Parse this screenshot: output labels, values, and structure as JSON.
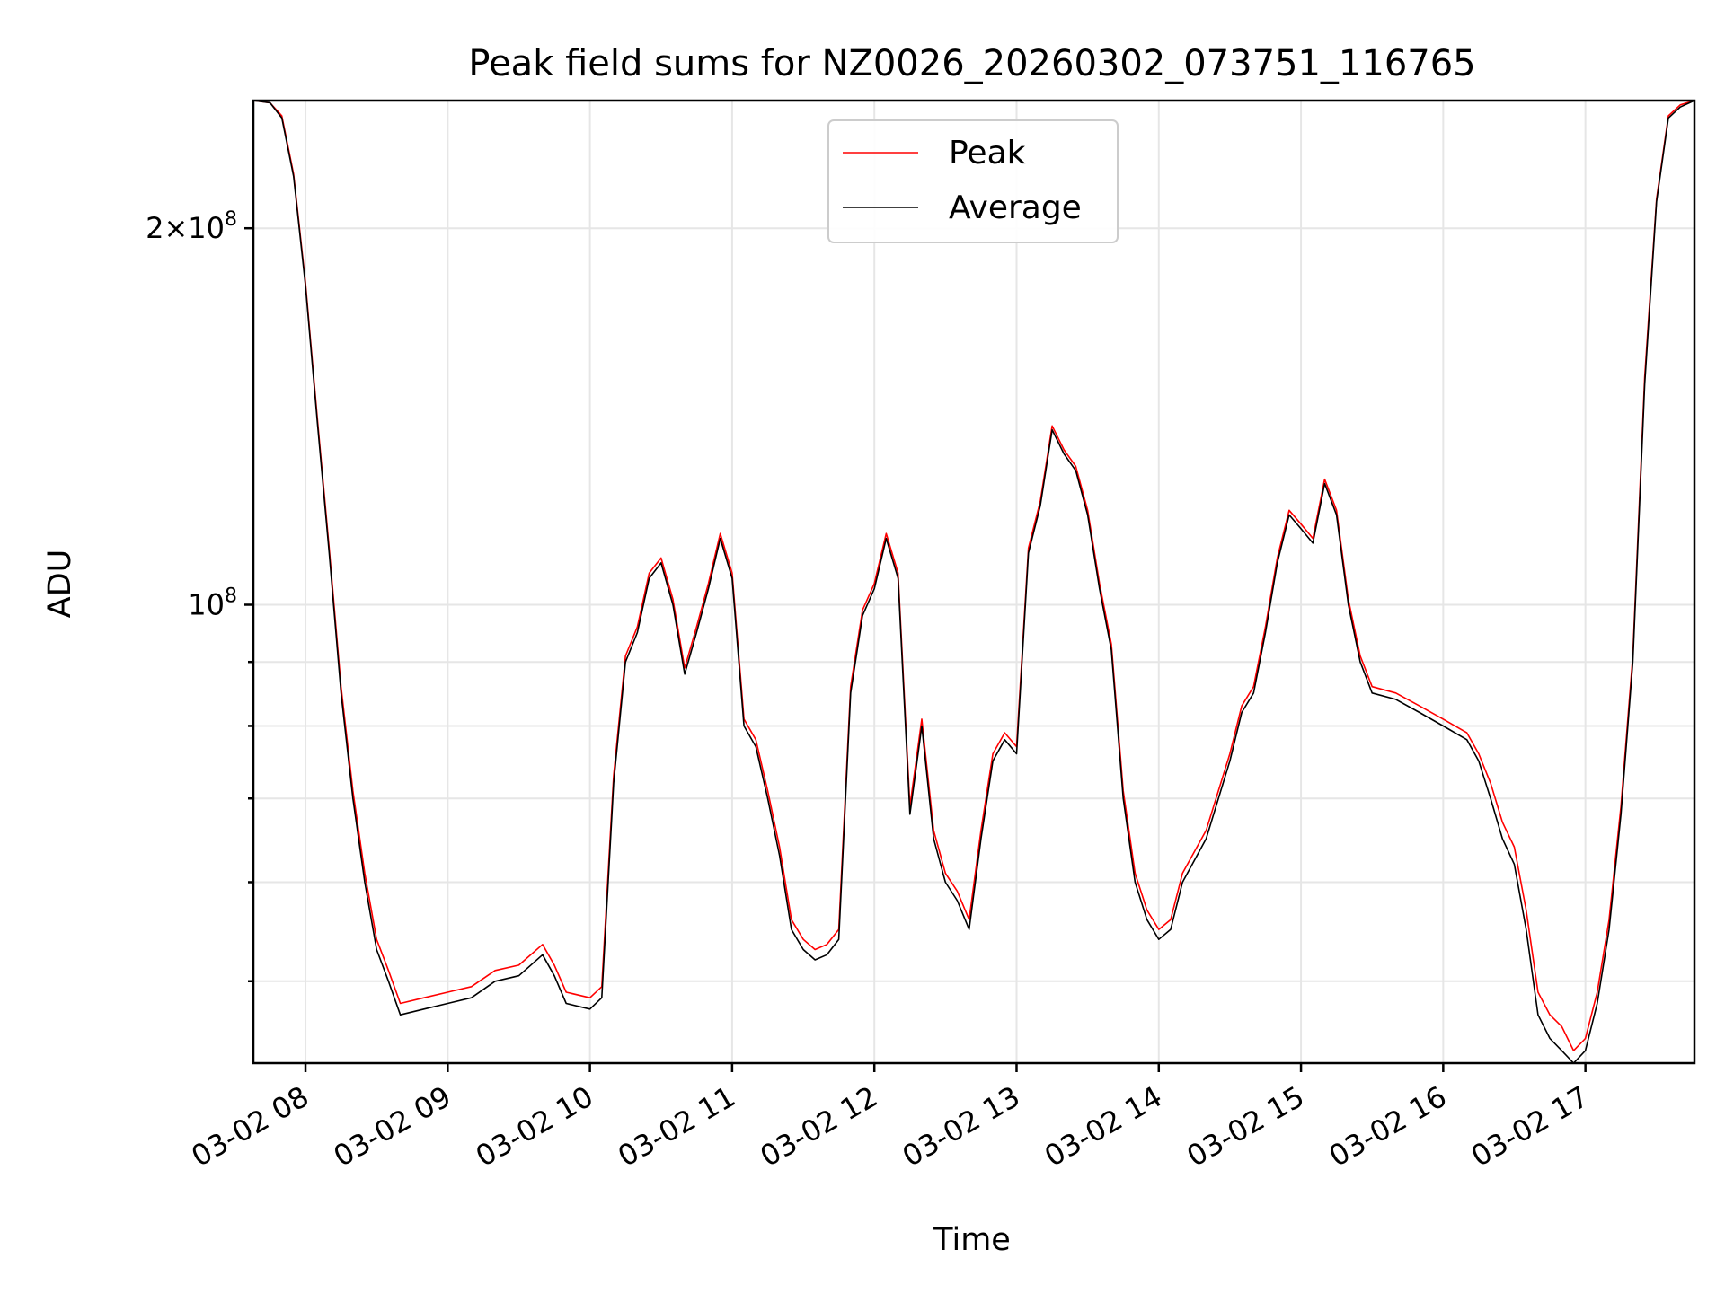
{
  "chart_data": {
    "type": "line",
    "title": "Peak field sums for NZ0026_20260302_073751_116765",
    "xlabel": "Time",
    "ylabel": "ADU",
    "yscale": "log",
    "xlim": [
      "2026-03-02 07:38",
      "2026-03-02 17:46"
    ],
    "ylim": [
      43000000,
      253000000
    ],
    "x_ticks": [
      "03-02 08",
      "03-02 09",
      "03-02 10",
      "03-02 11",
      "03-02 12",
      "03-02 13",
      "03-02 14",
      "03-02 15",
      "03-02 16",
      "03-02 17"
    ],
    "y_ticks_labeled": [
      {
        "value": 100000000,
        "label": "10^8"
      },
      {
        "value": 200000000,
        "label": "2×10^8"
      }
    ],
    "y_minor_ticks": [
      50000000,
      60000000,
      70000000,
      80000000,
      90000000
    ],
    "grid": true,
    "legend_position": "top-center",
    "series": [
      {
        "name": "Average",
        "color": "#000000",
        "x": [
          "2026-03-02 07:38",
          "2026-03-02 07:45",
          "2026-03-02 07:50",
          "2026-03-02 07:55",
          "2026-03-02 08:00",
          "2026-03-02 08:05",
          "2026-03-02 08:10",
          "2026-03-02 08:15",
          "2026-03-02 08:20",
          "2026-03-02 08:25",
          "2026-03-02 08:30",
          "2026-03-02 08:35",
          "2026-03-02 08:40",
          "2026-03-02 08:50",
          "2026-03-02 09:00",
          "2026-03-02 09:10",
          "2026-03-02 09:20",
          "2026-03-02 09:30",
          "2026-03-02 09:40",
          "2026-03-02 09:45",
          "2026-03-02 09:50",
          "2026-03-02 10:00",
          "2026-03-02 10:05",
          "2026-03-02 10:10",
          "2026-03-02 10:15",
          "2026-03-02 10:20",
          "2026-03-02 10:25",
          "2026-03-02 10:30",
          "2026-03-02 10:35",
          "2026-03-02 10:40",
          "2026-03-02 10:45",
          "2026-03-02 10:50",
          "2026-03-02 10:55",
          "2026-03-02 11:00",
          "2026-03-02 11:05",
          "2026-03-02 11:10",
          "2026-03-02 11:15",
          "2026-03-02 11:20",
          "2026-03-02 11:25",
          "2026-03-02 11:30",
          "2026-03-02 11:35",
          "2026-03-02 11:40",
          "2026-03-02 11:45",
          "2026-03-02 11:50",
          "2026-03-02 11:55",
          "2026-03-02 12:00",
          "2026-03-02 12:05",
          "2026-03-02 12:10",
          "2026-03-02 12:15",
          "2026-03-02 12:20",
          "2026-03-02 12:25",
          "2026-03-02 12:30",
          "2026-03-02 12:35",
          "2026-03-02 12:40",
          "2026-03-02 12:45",
          "2026-03-02 12:50",
          "2026-03-02 12:55",
          "2026-03-02 13:00",
          "2026-03-02 13:05",
          "2026-03-02 13:10",
          "2026-03-02 13:15",
          "2026-03-02 13:20",
          "2026-03-02 13:25",
          "2026-03-02 13:30",
          "2026-03-02 13:35",
          "2026-03-02 13:40",
          "2026-03-02 13:45",
          "2026-03-02 13:50",
          "2026-03-02 13:55",
          "2026-03-02 14:00",
          "2026-03-02 14:05",
          "2026-03-02 14:10",
          "2026-03-02 14:20",
          "2026-03-02 14:30",
          "2026-03-02 14:35",
          "2026-03-02 14:40",
          "2026-03-02 14:45",
          "2026-03-02 14:50",
          "2026-03-02 14:55",
          "2026-03-02 15:00",
          "2026-03-02 15:05",
          "2026-03-02 15:10",
          "2026-03-02 15:15",
          "2026-03-02 15:20",
          "2026-03-02 15:25",
          "2026-03-02 15:30",
          "2026-03-02 15:40",
          "2026-03-02 15:50",
          "2026-03-02 16:00",
          "2026-03-02 16:10",
          "2026-03-02 16:15",
          "2026-03-02 16:20",
          "2026-03-02 16:25",
          "2026-03-02 16:30",
          "2026-03-02 16:35",
          "2026-03-02 16:40",
          "2026-03-02 16:45",
          "2026-03-02 16:50",
          "2026-03-02 16:55",
          "2026-03-02 17:00",
          "2026-03-02 17:05",
          "2026-03-02 17:10",
          "2026-03-02 17:15",
          "2026-03-02 17:20",
          "2026-03-02 17:25",
          "2026-03-02 17:30",
          "2026-03-02 17:35",
          "2026-03-02 17:40",
          "2026-03-02 17:46"
        ],
        "values": [
          253000000,
          252000000,
          245000000,
          220000000,
          180000000,
          140000000,
          110000000,
          85000000,
          70000000,
          60000000,
          53000000,
          50000000,
          47000000,
          47500000,
          48000000,
          48500000,
          50000000,
          50500000,
          52500000,
          50500000,
          48000000,
          47500000,
          48500000,
          72000000,
          90000000,
          95000000,
          105000000,
          108000000,
          100000000,
          88000000,
          95000000,
          103000000,
          113000000,
          105000000,
          80000000,
          77000000,
          70000000,
          63000000,
          55000000,
          53000000,
          52000000,
          52500000,
          54000000,
          85000000,
          98000000,
          103000000,
          113000000,
          105000000,
          68000000,
          80000000,
          65000000,
          60000000,
          58000000,
          55000000,
          65000000,
          75000000,
          78000000,
          76000000,
          110000000,
          120000000,
          138000000,
          132000000,
          128000000,
          118000000,
          103000000,
          92000000,
          70000000,
          60000000,
          56000000,
          54000000,
          55000000,
          60000000,
          65000000,
          75000000,
          82000000,
          85000000,
          95000000,
          108000000,
          118000000,
          115000000,
          112000000,
          125000000,
          118000000,
          100000000,
          90000000,
          85000000,
          84000000,
          82000000,
          80000000,
          78000000,
          75000000,
          70000000,
          65000000,
          62000000,
          55000000,
          47000000,
          45000000,
          44000000,
          43000000,
          44000000,
          48000000,
          55000000,
          68000000,
          90000000,
          150000000,
          210000000,
          245000000,
          250000000,
          253000000
        ]
      },
      {
        "name": "Peak",
        "color": "#ff0000",
        "x": [
          "2026-03-02 07:38",
          "2026-03-02 07:45",
          "2026-03-02 07:50",
          "2026-03-02 07:55",
          "2026-03-02 08:00",
          "2026-03-02 08:05",
          "2026-03-02 08:10",
          "2026-03-02 08:15",
          "2026-03-02 08:20",
          "2026-03-02 08:25",
          "2026-03-02 08:30",
          "2026-03-02 08:35",
          "2026-03-02 08:40",
          "2026-03-02 08:50",
          "2026-03-02 09:00",
          "2026-03-02 09:10",
          "2026-03-02 09:20",
          "2026-03-02 09:30",
          "2026-03-02 09:40",
          "2026-03-02 09:45",
          "2026-03-02 09:50",
          "2026-03-02 10:00",
          "2026-03-02 10:05",
          "2026-03-02 10:10",
          "2026-03-02 10:15",
          "2026-03-02 10:20",
          "2026-03-02 10:25",
          "2026-03-02 10:30",
          "2026-03-02 10:35",
          "2026-03-02 10:40",
          "2026-03-02 10:45",
          "2026-03-02 10:50",
          "2026-03-02 10:55",
          "2026-03-02 11:00",
          "2026-03-02 11:05",
          "2026-03-02 11:10",
          "2026-03-02 11:15",
          "2026-03-02 11:20",
          "2026-03-02 11:25",
          "2026-03-02 11:30",
          "2026-03-02 11:35",
          "2026-03-02 11:40",
          "2026-03-02 11:45",
          "2026-03-02 11:50",
          "2026-03-02 11:55",
          "2026-03-02 12:00",
          "2026-03-02 12:05",
          "2026-03-02 12:10",
          "2026-03-02 12:15",
          "2026-03-02 12:20",
          "2026-03-02 12:25",
          "2026-03-02 12:30",
          "2026-03-02 12:35",
          "2026-03-02 12:40",
          "2026-03-02 12:45",
          "2026-03-02 12:50",
          "2026-03-02 12:55",
          "2026-03-02 13:00",
          "2026-03-02 13:05",
          "2026-03-02 13:10",
          "2026-03-02 13:15",
          "2026-03-02 13:20",
          "2026-03-02 13:25",
          "2026-03-02 13:30",
          "2026-03-02 13:35",
          "2026-03-02 13:40",
          "2026-03-02 13:45",
          "2026-03-02 13:50",
          "2026-03-02 13:55",
          "2026-03-02 14:00",
          "2026-03-02 14:05",
          "2026-03-02 14:10",
          "2026-03-02 14:20",
          "2026-03-02 14:30",
          "2026-03-02 14:35",
          "2026-03-02 14:40",
          "2026-03-02 14:45",
          "2026-03-02 14:50",
          "2026-03-02 14:55",
          "2026-03-02 15:00",
          "2026-03-02 15:05",
          "2026-03-02 15:10",
          "2026-03-02 15:15",
          "2026-03-02 15:20",
          "2026-03-02 15:25",
          "2026-03-02 15:30",
          "2026-03-02 15:40",
          "2026-03-02 15:50",
          "2026-03-02 16:00",
          "2026-03-02 16:10",
          "2026-03-02 16:15",
          "2026-03-02 16:20",
          "2026-03-02 16:25",
          "2026-03-02 16:30",
          "2026-03-02 16:35",
          "2026-03-02 16:40",
          "2026-03-02 16:45",
          "2026-03-02 16:50",
          "2026-03-02 16:55",
          "2026-03-02 17:00",
          "2026-03-02 17:05",
          "2026-03-02 17:10",
          "2026-03-02 17:15",
          "2026-03-02 17:20",
          "2026-03-02 17:25",
          "2026-03-02 17:30",
          "2026-03-02 17:35",
          "2026-03-02 17:40",
          "2026-03-02 17:46"
        ],
        "values": [
          253000000,
          252000000,
          246000000,
          221000000,
          181000000,
          141000000,
          111000000,
          86000000,
          71000000,
          61000000,
          54000000,
          51000000,
          48000000,
          48500000,
          49000000,
          49500000,
          51000000,
          51500000,
          53500000,
          51500000,
          49000000,
          48500000,
          49500000,
          73000000,
          91000000,
          96000000,
          106000000,
          109000000,
          101000000,
          89000000,
          96000000,
          104000000,
          114000000,
          106000000,
          81000000,
          78000000,
          71000000,
          64000000,
          56000000,
          54000000,
          53000000,
          53500000,
          55000000,
          86000000,
          99000000,
          104000000,
          114000000,
          106000000,
          69000000,
          81000000,
          66000000,
          61000000,
          59000000,
          56000000,
          66000000,
          76000000,
          79000000,
          77000000,
          111000000,
          121000000,
          139000000,
          133000000,
          129000000,
          119000000,
          104000000,
          93000000,
          71000000,
          61000000,
          57000000,
          55000000,
          56000000,
          61000000,
          66000000,
          76000000,
          83000000,
          86000000,
          96000000,
          109000000,
          119000000,
          116000000,
          113000000,
          126000000,
          119000000,
          101000000,
          91000000,
          86000000,
          85000000,
          83000000,
          81000000,
          79000000,
          76000000,
          72000000,
          67000000,
          64000000,
          57000000,
          49000000,
          47000000,
          46000000,
          44000000,
          45000000,
          49000000,
          56000000,
          69000000,
          91000000,
          152000000,
          211000000,
          246000000,
          251000000,
          253000000
        ]
      }
    ]
  }
}
